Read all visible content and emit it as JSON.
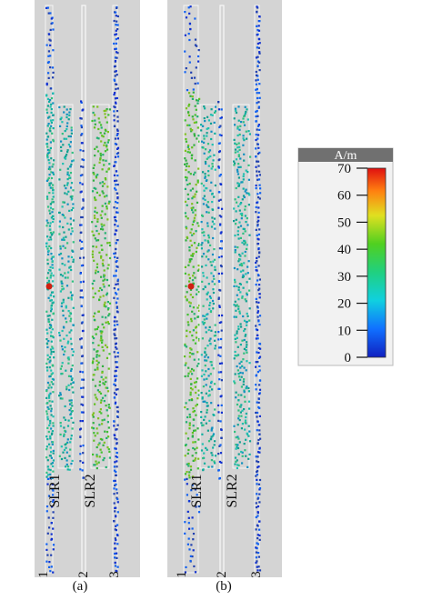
{
  "panels": [
    {
      "label": "(a)",
      "resonators": [
        "SLR1",
        "SLR2"
      ],
      "ports": [
        "1",
        "2",
        "3"
      ]
    },
    {
      "label": "(b)",
      "resonators": [
        "SLR1",
        "SLR2"
      ],
      "ports": [
        "1",
        "2",
        "3"
      ]
    }
  ],
  "colorbar": {
    "unit": "A/m",
    "lim": [
      0,
      70
    ],
    "ticks": [
      0,
      10,
      20,
      30,
      40,
      50,
      60,
      70
    ]
  }
}
